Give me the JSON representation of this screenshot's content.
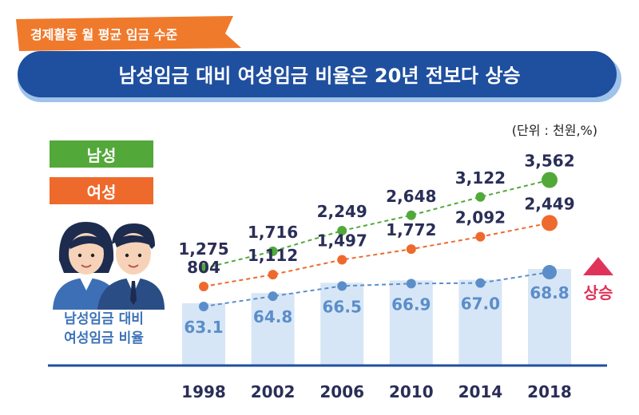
{
  "header": {
    "tag_text": "경제활동 월 평균 임금 수준",
    "title": "남성임금 대비 여성임금 비율은 20년 전보다 상승",
    "unit": "(단위 : 천원,%)"
  },
  "legend": {
    "male": "남성",
    "female": "여성",
    "ratio_line1": "남성임금 대비",
    "ratio_line2": "여성임금 비율"
  },
  "annotation": {
    "label": "상승",
    "color": "#e0335a"
  },
  "colors": {
    "male": "#52a93a",
    "female": "#ee6a2c",
    "ratio": "#5b8ec9",
    "ratio_bar": "#d7e6f6",
    "banner": "#1f4f9f",
    "tag": "#f07a2c",
    "axis": "#1f4f9f"
  },
  "chart_data": {
    "type": "line",
    "categories": [
      "1998",
      "2002",
      "2006",
      "2010",
      "2014",
      "2018"
    ],
    "series": [
      {
        "name": "남성",
        "values": [
          1275,
          1716,
          2249,
          2648,
          3122,
          3562
        ]
      },
      {
        "name": "여성",
        "values": [
          804,
          1112,
          1497,
          1772,
          2092,
          2449
        ]
      },
      {
        "name": "남성임금 대비 여성임금 비율",
        "values": [
          63.1,
          64.8,
          66.5,
          66.9,
          67.0,
          68.8
        ]
      }
    ],
    "title": "남성임금 대비 여성임금 비율은 20년 전보다 상승",
    "unit": "(단위 : 천원,%)"
  }
}
